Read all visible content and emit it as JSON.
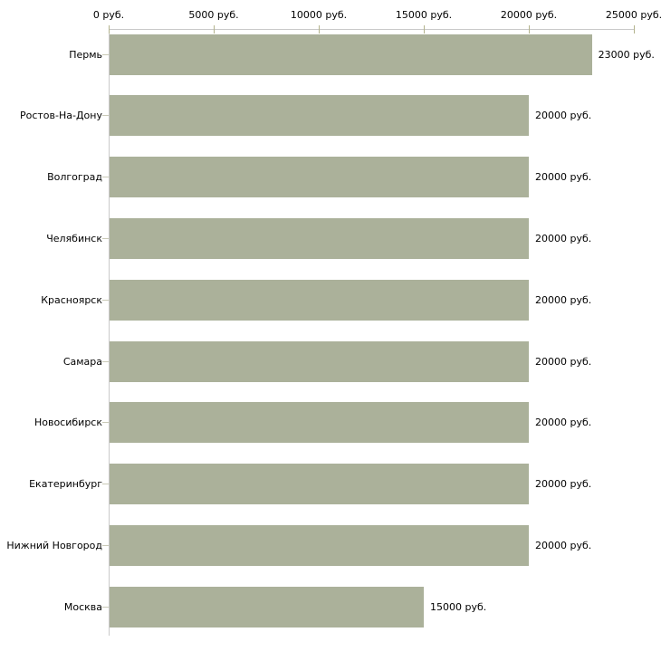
{
  "chart_data": {
    "type": "bar",
    "orientation": "horizontal",
    "title": "",
    "categories": [
      "Пермь",
      "Ростов-На-Дону",
      "Волгоград",
      "Челябинск",
      "Красноярск",
      "Самара",
      "Новосибирск",
      "Екатеринбург",
      "Нижний Новгород",
      "Москва"
    ],
    "values": [
      23000,
      20000,
      20000,
      20000,
      20000,
      20000,
      20000,
      20000,
      20000,
      15000
    ],
    "value_labels": [
      "23000 руб.",
      "20000 руб.",
      "20000 руб.",
      "20000 руб.",
      "20000 руб.",
      "20000 руб.",
      "20000 руб.",
      "20000 руб.",
      "20000 руб.",
      "15000 руб."
    ],
    "unit": "руб.",
    "xlabel": "",
    "ylabel": "",
    "xlim": [
      0,
      25000
    ],
    "x_axis_position": "top",
    "x_ticks": [
      {
        "value": 0,
        "label": "0 руб."
      },
      {
        "value": 5000,
        "label": "5000 руб."
      },
      {
        "value": 10000,
        "label": "10000 руб."
      },
      {
        "value": 15000,
        "label": "15000 руб."
      },
      {
        "value": 20000,
        "label": "20000 руб."
      },
      {
        "value": 25000,
        "label": "25000 руб."
      }
    ],
    "grid": false,
    "legend": null,
    "colors": {
      "bar": "#abb19a",
      "axis_line": "#c9c9c9",
      "top_tick": "#b3b38c",
      "left_tick": "#c9c9b6",
      "text": "#000000",
      "background": "#ffffff"
    }
  }
}
